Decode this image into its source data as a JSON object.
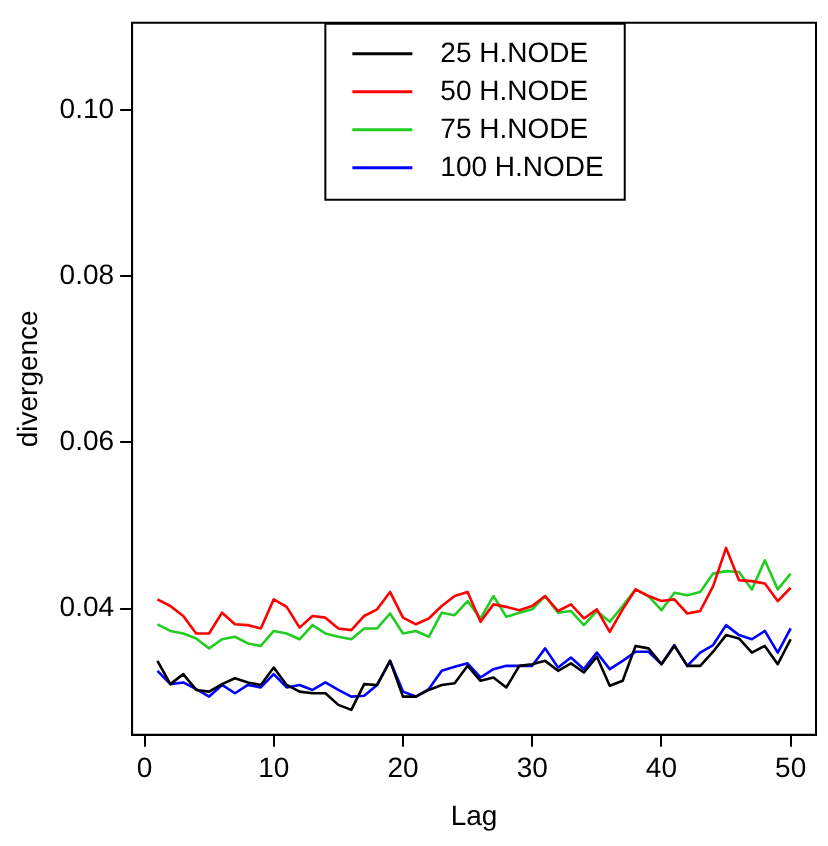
{
  "chart_data": {
    "type": "line",
    "xlabel": "Lag",
    "ylabel": "divergence",
    "x": [
      1,
      2,
      3,
      4,
      5,
      6,
      7,
      8,
      9,
      10,
      11,
      12,
      13,
      14,
      15,
      16,
      17,
      18,
      19,
      20,
      21,
      22,
      23,
      24,
      25,
      26,
      27,
      28,
      29,
      30,
      31,
      32,
      33,
      34,
      35,
      36,
      37,
      38,
      39,
      40,
      41,
      42,
      43,
      44,
      45,
      46,
      47,
      48,
      49,
      50
    ],
    "xlim": [
      -0.96,
      51.96
    ],
    "xticks": [
      0,
      10,
      20,
      30,
      40,
      50
    ],
    "ylim": [
      0.0248,
      0.1105
    ],
    "yticks": [
      0.04,
      0.06,
      0.08,
      {
        "value": 0.1,
        "label": "0.10"
      }
    ],
    "grid": false,
    "legend": "top",
    "marker": "none",
    "line_style": "solid",
    "series": [
      {
        "name": "25 H.NODE",
        "color": "#000000",
        "values": [
          0.0337,
          0.0309,
          0.0321,
          0.0302,
          0.03,
          0.0309,
          0.0316,
          0.0311,
          0.0308,
          0.0329,
          0.0308,
          0.03,
          0.0298,
          0.0298,
          0.0284,
          0.0278,
          0.0309,
          0.0308,
          0.0337,
          0.0294,
          0.0294,
          0.0302,
          0.0308,
          0.031,
          0.0331,
          0.0313,
          0.0317,
          0.0305,
          0.0331,
          0.0333,
          0.0337,
          0.0325,
          0.0334,
          0.0323,
          0.0342,
          0.0307,
          0.0313,
          0.0355,
          0.0352,
          0.0333,
          0.0355,
          0.0331,
          0.0331,
          0.0348,
          0.0368,
          0.0364,
          0.0347,
          0.0355,
          0.0333,
          0.0363
        ]
      },
      {
        "name": "50 H.NODE",
        "color": "#ff0000",
        "values": [
          0.0411,
          0.0403,
          0.0391,
          0.037,
          0.037,
          0.0395,
          0.0381,
          0.038,
          0.0376,
          0.0411,
          0.0402,
          0.0377,
          0.0391,
          0.0389,
          0.0376,
          0.0374,
          0.0391,
          0.0399,
          0.042,
          0.0389,
          0.0381,
          0.0388,
          0.0403,
          0.0415,
          0.042,
          0.0384,
          0.0405,
          0.0402,
          0.0398,
          0.0403,
          0.0415,
          0.0397,
          0.0405,
          0.0388,
          0.0399,
          0.0372,
          0.0399,
          0.0423,
          0.0415,
          0.0409,
          0.0411,
          0.0394,
          0.0397,
          0.0427,
          0.0473,
          0.0434,
          0.0433,
          0.043,
          0.0409,
          0.0425
        ]
      },
      {
        "name": "75 H.NODE",
        "color": "#22cc22",
        "values": [
          0.0381,
          0.0373,
          0.037,
          0.0364,
          0.0352,
          0.0363,
          0.0366,
          0.0358,
          0.0355,
          0.0373,
          0.037,
          0.0363,
          0.038,
          0.037,
          0.0366,
          0.0363,
          0.0376,
          0.0376,
          0.0394,
          0.037,
          0.0373,
          0.0366,
          0.0395,
          0.0392,
          0.0409,
          0.0388,
          0.0415,
          0.039,
          0.0395,
          0.0399,
          0.0415,
          0.0395,
          0.0397,
          0.038,
          0.0397,
          0.0384,
          0.0403,
          0.0423,
          0.0415,
          0.0398,
          0.0419,
          0.0416,
          0.042,
          0.0442,
          0.0445,
          0.0444,
          0.0423,
          0.0458,
          0.0423,
          0.0442
        ]
      },
      {
        "name": "100 H.NODE",
        "color": "#0000ff",
        "values": [
          0.0325,
          0.0309,
          0.0311,
          0.0303,
          0.0294,
          0.0308,
          0.0298,
          0.0308,
          0.0305,
          0.0321,
          0.0305,
          0.0308,
          0.0302,
          0.0311,
          0.0302,
          0.0294,
          0.0295,
          0.0308,
          0.0337,
          0.03,
          0.0294,
          0.0303,
          0.0325,
          0.033,
          0.0334,
          0.0317,
          0.0327,
          0.0331,
          0.0331,
          0.0331,
          0.0352,
          0.0329,
          0.0341,
          0.0327,
          0.0347,
          0.0327,
          0.0337,
          0.0348,
          0.0348,
          0.0333,
          0.0356,
          0.0331,
          0.0347,
          0.0356,
          0.038,
          0.0368,
          0.0363,
          0.0373,
          0.0347,
          0.0376
        ]
      }
    ]
  }
}
